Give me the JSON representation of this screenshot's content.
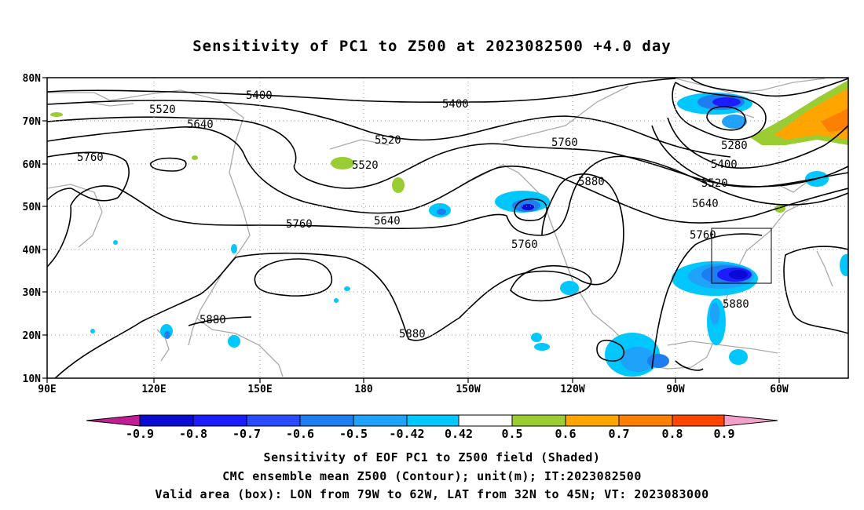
{
  "title": "Sensitivity of PC1 to Z500 at 2023082500 +4.0 day",
  "map": {
    "lat_labels": [
      "80N",
      "70N",
      "60N",
      "50N",
      "40N",
      "30N",
      "20N",
      "10N"
    ],
    "lon_labels": [
      "90E",
      "120E",
      "150E",
      "180",
      "150W",
      "120W",
      "90W",
      "60W"
    ],
    "contour_labels": [
      "5400",
      "5400",
      "5520",
      "5640",
      "5520",
      "5520",
      "5760",
      "5760",
      "5640",
      "5760",
      "5880",
      "5280",
      "5400",
      "5520",
      "5640",
      "5760",
      "5880",
      "5880",
      "5880",
      "5760"
    ],
    "valid_box": {
      "lon_range": [
        "79W",
        "62W"
      ],
      "lat_range": [
        "32N",
        "45N"
      ]
    }
  },
  "colorbar": {
    "labels": [
      "-0.9",
      "-0.8",
      "-0.7",
      "-0.6",
      "-0.5",
      "-0.42",
      "0.42",
      "0.5",
      "0.6",
      "0.7",
      "0.8",
      "0.9"
    ],
    "colors": [
      "#c21d94",
      "#0a0ad2",
      "#1c1cff",
      "#2a4bff",
      "#1e7df0",
      "#1ea2fa",
      "#00c8ff",
      "#ffffff",
      "#9acd32",
      "#ffa500",
      "#ff7f00",
      "#ff4500",
      "#ff0000",
      "#f4a0c8"
    ]
  },
  "captions": [
    "Sensitivity of EOF PC1 to Z500 field (Shaded)",
    "CMC ensemble mean Z500 (Contour); unit(m); IT:2023082500",
    "Valid area (box): LON from 79W to 62W, LAT from 32N to 45N; VT: 2023083000"
  ]
}
